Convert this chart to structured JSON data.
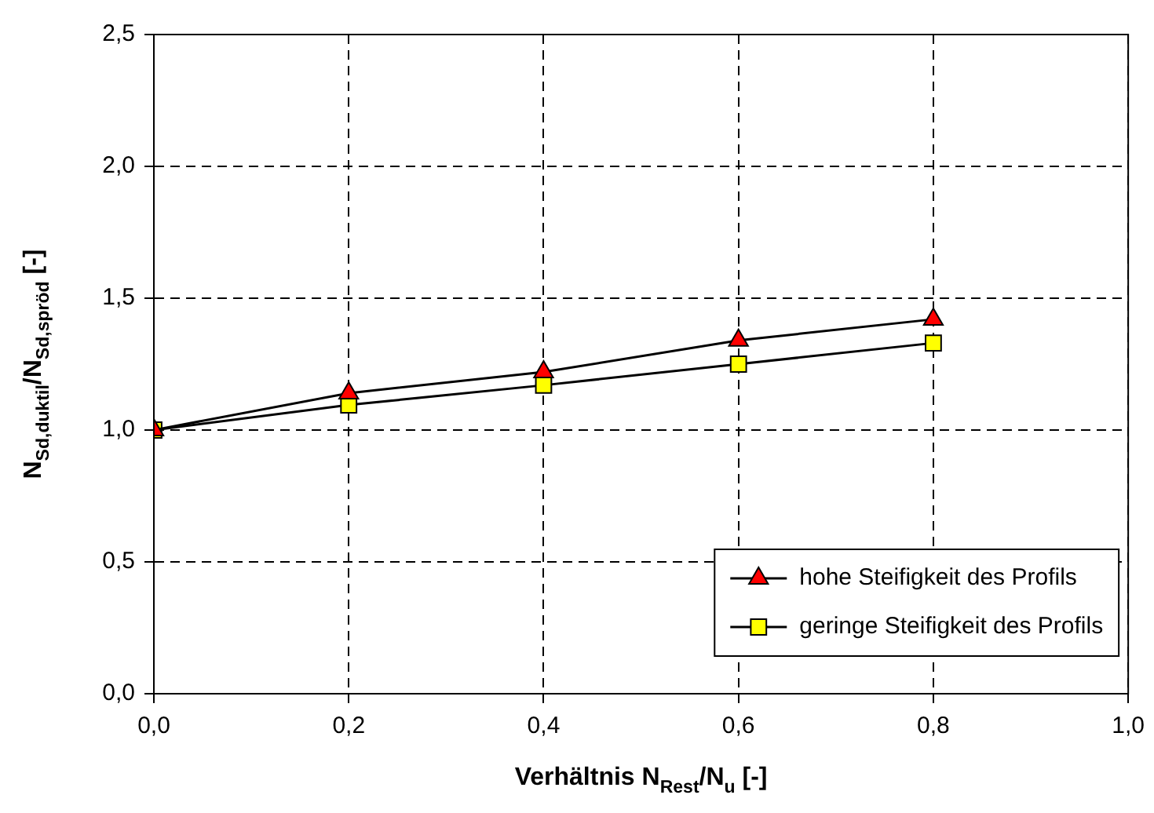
{
  "chart_data": {
    "type": "line",
    "xlabel": "Verhältnis N$_{Rest}$/N$_{u}$ [-]",
    "ylabel": "N$_{Sd,duktil}$/N$_{Sd,spröd}$ [-]",
    "x": [
      0,
      0.2,
      0.4,
      0.6,
      0.8
    ],
    "series": [
      {
        "name": "hohe Steifigkeit des Profils",
        "color": "#ff0000",
        "marker": "triangle",
        "values": [
          1.0,
          1.14,
          1.22,
          1.34,
          1.42
        ]
      },
      {
        "name": "geringe Steifigkeit des Profils",
        "color": "#ffff00",
        "marker": "square",
        "values": [
          1.0,
          1.095,
          1.17,
          1.25,
          1.33
        ]
      }
    ],
    "xlim": [
      0,
      1
    ],
    "ylim": [
      0,
      2.5
    ],
    "xticks": [
      {
        "value": 0,
        "label": "0,0"
      },
      {
        "value": 0.2,
        "label": "0,2"
      },
      {
        "value": 0.4,
        "label": "0,4"
      },
      {
        "value": 0.6,
        "label": "0,6"
      },
      {
        "value": 0.8,
        "label": "0,8"
      },
      {
        "value": 1,
        "label": "1,0"
      }
    ],
    "yticks": [
      {
        "value": 0,
        "label": "0,0"
      },
      {
        "value": 0.5,
        "label": "0,5"
      },
      {
        "value": 1,
        "label": "1,0"
      },
      {
        "value": 1.5,
        "label": "1,5"
      },
      {
        "value": 2,
        "label": "2,0"
      },
      {
        "value": 2.5,
        "label": "2,5"
      }
    ],
    "grid": true,
    "legend": "bottom right",
    "line_style": "solid"
  }
}
